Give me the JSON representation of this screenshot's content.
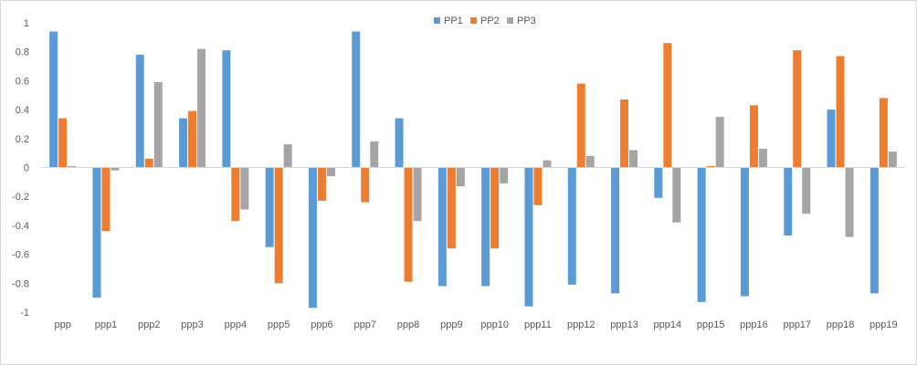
{
  "chart_data": {
    "type": "bar",
    "categories": [
      "ppp",
      "ppp1",
      "ppp2",
      "ppp3",
      "ppp4",
      "ppp5",
      "ppp6",
      "ppp7",
      "ppp8",
      "ppp9",
      "ppp10",
      "ppp11",
      "ppp12",
      "ppp13",
      "ppp14",
      "ppp15",
      "ppp16",
      "ppp17",
      "ppp18",
      "ppp19"
    ],
    "series": [
      {
        "name": "PP1",
        "color": "#5b9bd5",
        "values": [
          0.94,
          -0.9,
          0.78,
          0.34,
          0.81,
          -0.55,
          -0.97,
          0.94,
          0.34,
          -0.82,
          -0.82,
          -0.96,
          -0.81,
          -0.87,
          -0.21,
          -0.93,
          -0.89,
          -0.47,
          0.4,
          -0.87
        ]
      },
      {
        "name": "PP2",
        "color": "#ed7d31",
        "values": [
          0.34,
          -0.44,
          0.06,
          0.39,
          -0.37,
          -0.8,
          -0.23,
          -0.24,
          -0.79,
          -0.56,
          -0.56,
          -0.26,
          0.58,
          0.47,
          0.86,
          0.01,
          0.43,
          0.81,
          0.77,
          0.48
        ]
      },
      {
        "name": "PP3",
        "color": "#a5a5a5",
        "values": [
          0.01,
          -0.02,
          0.59,
          0.82,
          -0.29,
          0.16,
          -0.06,
          0.18,
          -0.37,
          -0.13,
          -0.11,
          0.05,
          0.08,
          0.12,
          -0.38,
          0.35,
          0.13,
          -0.32,
          -0.48,
          0.11
        ]
      }
    ],
    "title": "",
    "xlabel": "",
    "ylabel": "",
    "ylim": [
      -1,
      1
    ],
    "yticks": [
      "1",
      "0.8",
      "0.6",
      "0.4",
      "0.2",
      "0",
      "-0.2",
      "-0.4",
      "-0.6",
      "-0.8",
      "-1"
    ],
    "grid": false,
    "legend_position": "top-center"
  }
}
